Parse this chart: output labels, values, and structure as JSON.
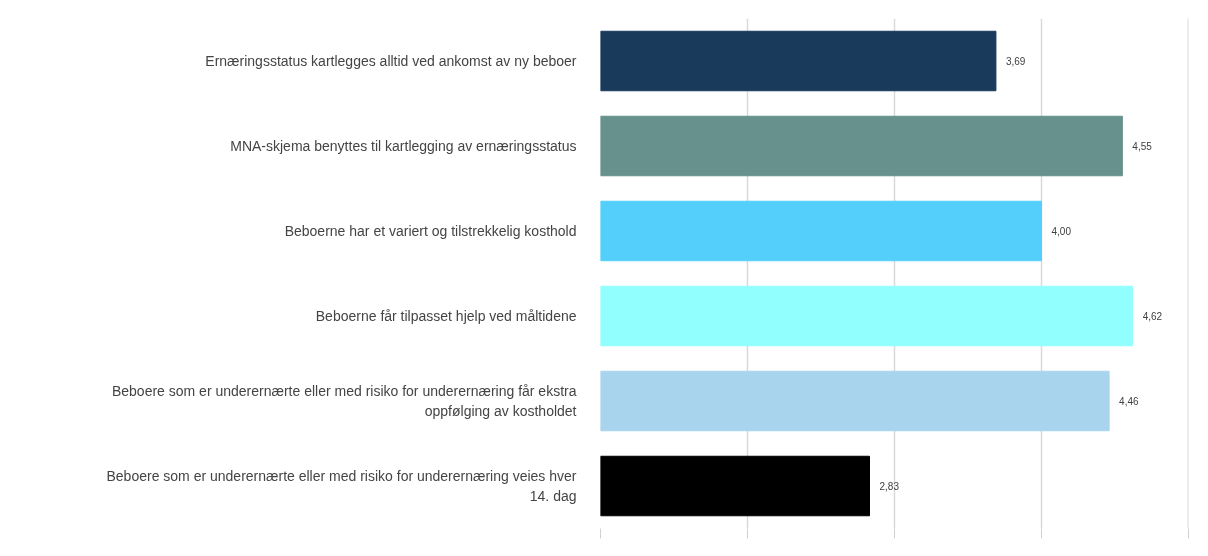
{
  "chart_data": {
    "type": "bar",
    "orientation": "horizontal",
    "categories": [
      "Ernæringsstatus kartlegges alltid ved ankomst av ny beboer",
      "MNA-skjema benyttes til kartlegging av ernæringsstatus",
      "Beboerne har et variert og tilstrekkelig kosthold",
      "Beboerne får tilpasset hjelp ved måltidene",
      "Beboere som er underernærte eller med risiko for underernæring får ekstra oppfølging av kostholdet",
      "Beboere som er underernærte eller med risiko for underernæring veies hver 14. dag"
    ],
    "values": [
      3.69,
      4.55,
      4.0,
      4.62,
      4.46,
      2.83
    ],
    "value_labels": [
      "3,69",
      "4,55",
      "4,00",
      "4,62",
      "4,46",
      "2,83"
    ],
    "colors": [
      "#1a3a5c",
      "#66918c",
      "#54cffc",
      "#92ffff",
      "#a9d4ee",
      "#000000"
    ],
    "xlim": [
      1,
      5
    ],
    "xticks": [
      {
        "value": 1,
        "label": null
      },
      {
        "value": 2,
        "label": null
      },
      {
        "value": 3,
        "label": null
      },
      {
        "value": 4,
        "label": null
      },
      {
        "value": 5,
        "label": null
      }
    ],
    "grid": "x",
    "tick_labels": "y"
  }
}
